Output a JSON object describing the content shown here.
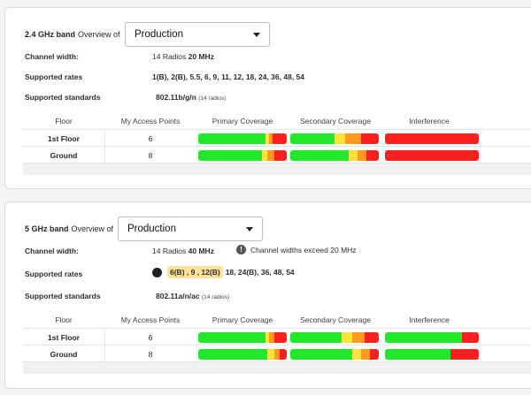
{
  "colors": {
    "green": "#22e82a",
    "yellow": "#ffe23a",
    "orange": "#ff9a1f",
    "red": "#ff1f1f"
  },
  "columns": [
    "Floor",
    "My Access Points",
    "Primary Coverage",
    "Secondary Coverage",
    "Interference"
  ],
  "band24": {
    "band_label": "2.4 GHz band",
    "overview_label": "Overview of",
    "select_value": "Production",
    "channel_width_label": "Channel width:",
    "channel_width_radios": "14 Radios",
    "channel_width_value": "20 MHz",
    "rates_label": "Supported rates",
    "rates_value": "1(B), 2(B), 5.5, 6, 9, 11, 12, 18, 24, 36, 48, 54",
    "standards_label": "Supported standards",
    "standards_value": "802.11b/g/n",
    "standards_count": "(14 radios)",
    "rows": [
      {
        "floor": "1st Floor",
        "aps": "6",
        "primary": [
          0.76,
          0.04,
          0.04,
          0.16
        ],
        "secondary": [
          0.5,
          0.12,
          0.18,
          0.2
        ],
        "interference": [
          0.0,
          0.0,
          0.0,
          1.0
        ]
      },
      {
        "floor": "Ground",
        "aps": "8",
        "primary": [
          0.72,
          0.06,
          0.08,
          0.14
        ],
        "secondary": [
          0.66,
          0.1,
          0.1,
          0.14
        ],
        "interference": [
          0.0,
          0.0,
          0.0,
          1.0
        ]
      }
    ]
  },
  "band5": {
    "band_label": "5 GHz band",
    "overview_label": "Overview of",
    "select_value": "Production",
    "channel_width_label": "Channel width:",
    "channel_width_radios": "14 Radios",
    "channel_width_value": "40 MHz",
    "warning_text": "Channel widths exceed 20 MHz",
    "rates_label": "Supported rates",
    "rates_highlight": "6(B) , 9 , 12(B)",
    "rates_rest": "18, 24(B), 36, 48, 54",
    "standards_label": "Supported standards",
    "standards_value": "802.11a/n/ac",
    "standards_count": "(14 radios)",
    "rows": [
      {
        "floor": "1st Floor",
        "aps": "6",
        "primary": [
          0.76,
          0.04,
          0.06,
          0.14
        ],
        "secondary": [
          0.58,
          0.12,
          0.14,
          0.16
        ],
        "interference": [
          0.82,
          0.0,
          0.0,
          0.18
        ]
      },
      {
        "floor": "Ground",
        "aps": "8",
        "primary": [
          0.78,
          0.08,
          0.06,
          0.08
        ],
        "secondary": [
          0.7,
          0.1,
          0.1,
          0.1
        ],
        "interference": [
          0.7,
          0.0,
          0.0,
          0.3
        ]
      }
    ]
  }
}
